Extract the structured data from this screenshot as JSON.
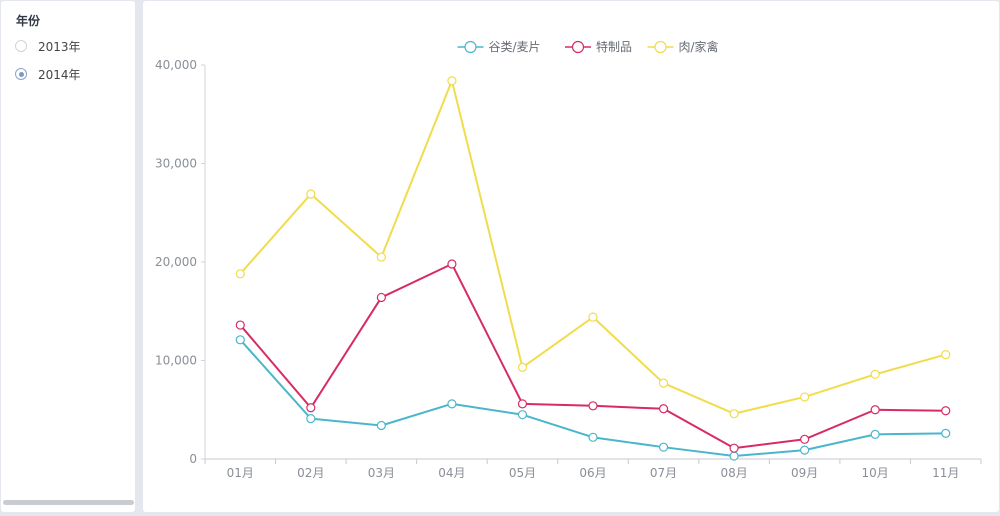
{
  "sidebar": {
    "title": "年份",
    "options": [
      {
        "label": "2013年",
        "checked": false
      },
      {
        "label": "2014年",
        "checked": true
      }
    ]
  },
  "chart_data": {
    "type": "line",
    "title": "",
    "xlabel": "",
    "ylabel": "",
    "categories": [
      "01月",
      "02月",
      "03月",
      "04月",
      "05月",
      "06月",
      "07月",
      "08月",
      "09月",
      "10月",
      "11月"
    ],
    "ylim": [
      0,
      40000
    ],
    "yticks": [
      0,
      10000,
      20000,
      30000,
      40000
    ],
    "ytick_labels": [
      "0",
      "10,000",
      "20,000",
      "30,000",
      "40,000"
    ],
    "legend_position": "top-center",
    "grid": false,
    "series": [
      {
        "name": "谷类/麦片",
        "color": "#4ab6cc",
        "values": [
          12100,
          4100,
          3400,
          5600,
          4500,
          2200,
          1200,
          300,
          900,
          2500,
          2600
        ]
      },
      {
        "name": "特制品",
        "color": "#d62c63",
        "values": [
          13600,
          5200,
          16400,
          19800,
          5600,
          5400,
          5100,
          1100,
          2000,
          5000,
          4900
        ]
      },
      {
        "name": "肉/家禽",
        "color": "#f0dc4c",
        "values": [
          18800,
          26900,
          20500,
          38400,
          9300,
          14400,
          7700,
          4600,
          6300,
          8600,
          10600
        ]
      }
    ]
  }
}
